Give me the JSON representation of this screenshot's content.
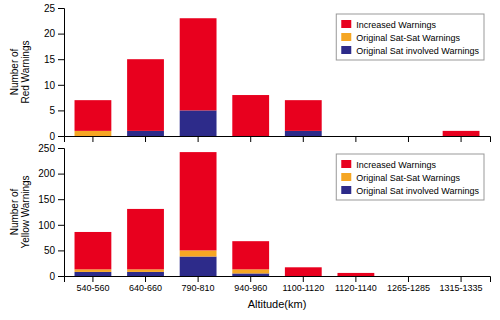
{
  "chart_data": [
    {
      "type": "bar",
      "stacked": true,
      "categories": [
        "540-560",
        "640-660",
        "790-810",
        "940-960",
        "1100-1120",
        "1120-1140",
        "1265-1285",
        "1315-1335"
      ],
      "series": [
        {
          "name": "Original Sat involved Warnings",
          "color": "#2d2b8a",
          "values": [
            0,
            1,
            5,
            0,
            1,
            0,
            0,
            0
          ]
        },
        {
          "name": "Original Sat-Sat Warnings",
          "color": "#f5a623",
          "values": [
            1,
            0,
            0,
            0,
            0,
            0,
            0,
            0
          ]
        },
        {
          "name": "Increased Warnings",
          "color": "#e8001e",
          "values": [
            6,
            14,
            18,
            8,
            6,
            0,
            0,
            1
          ]
        }
      ],
      "y_label": "Number of\nRed Warnings",
      "ylim": [
        0,
        25
      ],
      "yticks": [
        0,
        5,
        10,
        15,
        20,
        25
      ],
      "legend": "upper right",
      "tick_labels": "y"
    },
    {
      "type": "bar",
      "stacked": true,
      "categories": [
        "540-560",
        "640-660",
        "790-810",
        "940-960",
        "1100-1120",
        "1120-1140",
        "1265-1285",
        "1315-1335"
      ],
      "series": [
        {
          "name": "Original Sat involved Warnings",
          "color": "#2d2b8a",
          "values": [
            8,
            8,
            38,
            5,
            0,
            0,
            0,
            0
          ]
        },
        {
          "name": "Original Sat-Sat Warnings",
          "color": "#f5a623",
          "values": [
            5,
            5,
            12,
            8,
            0,
            0,
            0,
            0
          ]
        },
        {
          "name": "Increased Warnings",
          "color": "#e8001e",
          "values": [
            73,
            118,
            192,
            55,
            17,
            6,
            0,
            0
          ]
        }
      ],
      "x_label": "Altitude(km)",
      "y_label": "Number of\nYellow Warnings",
      "ylim": [
        0,
        250
      ],
      "yticks": [
        0,
        50,
        100,
        150,
        200,
        250
      ],
      "legend": "upper right"
    }
  ]
}
